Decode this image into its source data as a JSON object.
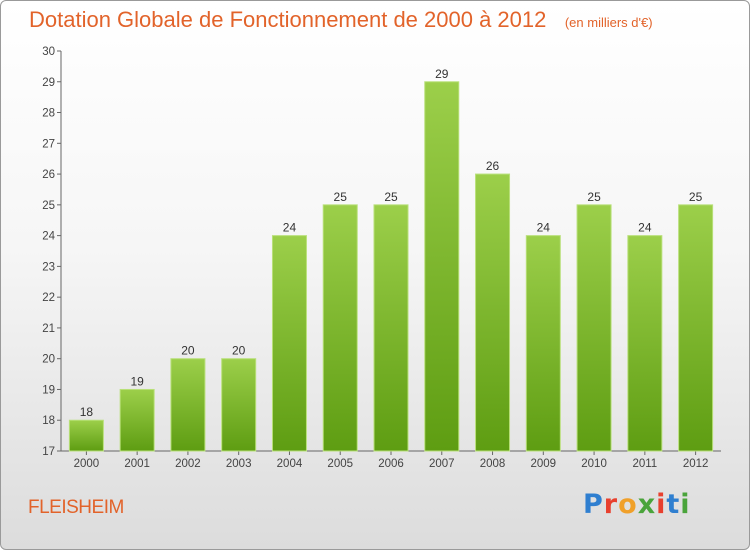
{
  "title": "Dotation Globale de Fonctionnement de 2000 à 2012",
  "unit": "(en milliers d'€)",
  "commune": "FLEISHEIM",
  "brand": {
    "text": "Proxiti",
    "letter_colors": [
      "#2f7fd0",
      "#e8402e",
      "#f0a02a",
      "#4aa43b",
      "#e8402e",
      "#2f7fd0",
      "#4aa43b"
    ]
  },
  "colors": {
    "bar_top": "#9ccf4a",
    "bar_bottom": "#5e9d12",
    "title": "#e2632a"
  },
  "chart_data": {
    "type": "bar",
    "categories": [
      "2000",
      "2001",
      "2002",
      "2003",
      "2004",
      "2005",
      "2006",
      "2007",
      "2008",
      "2009",
      "2010",
      "2011",
      "2012"
    ],
    "values": [
      18,
      19,
      20,
      20,
      24,
      25,
      25,
      29,
      26,
      24,
      25,
      24,
      25
    ],
    "title": "Dotation Globale de Fonctionnement de 2000 à 2012",
    "xlabel": "",
    "ylabel": "",
    "ylim": [
      17,
      30
    ],
    "yticks": [
      17,
      18,
      19,
      20,
      21,
      22,
      23,
      24,
      25,
      26,
      27,
      28,
      29,
      30
    ],
    "grid": false,
    "data_labels": true
  }
}
